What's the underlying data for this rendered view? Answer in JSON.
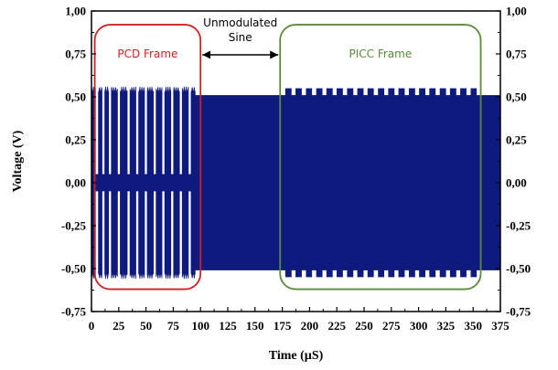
{
  "chart_data": {
    "type": "line",
    "xlabel": "Time (µS)",
    "ylabel": "Voltage (V)",
    "xlim": [
      0,
      375
    ],
    "ylim": [
      -0.75,
      1.0
    ],
    "x_ticks": [
      0,
      25,
      50,
      75,
      100,
      125,
      150,
      175,
      200,
      225,
      250,
      275,
      300,
      325,
      350,
      375
    ],
    "x_tick_labels": [
      "0",
      "25",
      "50",
      "75",
      "100",
      "125",
      "150",
      "175",
      "200",
      "225",
      "250",
      "275",
      "300",
      "325",
      "350",
      "375"
    ],
    "y_ticks": [
      -0.75,
      -0.5,
      -0.25,
      0.0,
      0.25,
      0.5,
      0.75,
      1.0
    ],
    "y_tick_labels": [
      "-0,75",
      "-0,50",
      "-0,25",
      "0,00",
      "0,25",
      "0,50",
      "0,75",
      "1,00"
    ],
    "right_y_axis_mirrored": true,
    "grid": false,
    "series": [
      {
        "color": "#0f1a7e",
        "signal": {
          "start": 0,
          "end": 375,
          "carrier_amplitude": 0.51,
          "pcd_pulse_amplitude": 0.56,
          "pcd_pause_centers": [
            5,
            11,
            17,
            25,
            34,
            42,
            50,
            58,
            66,
            74,
            82,
            90
          ],
          "pcd_pause_width": 2.5,
          "picc_subcarrier_start": 178,
          "picc_subcarrier_end": 354,
          "picc_subcarrier_period": 9.44,
          "picc_modulated_amplitude": 0.55
        }
      }
    ],
    "annotations": [
      {
        "label": "PCD Frame",
        "color": "#cc2222",
        "x_range": [
          3,
          100
        ],
        "y_range": [
          -0.62,
          0.92
        ]
      },
      {
        "label": "PICC Frame",
        "color": "#5a8a3a",
        "x_range": [
          173,
          357
        ],
        "y_range": [
          -0.62,
          0.92
        ]
      },
      {
        "label_lines": [
          "Unmodulated",
          "Sine"
        ],
        "color": "#000000",
        "arrow_from": 100,
        "arrow_to": 173,
        "arrow_y": 0.745
      }
    ]
  }
}
